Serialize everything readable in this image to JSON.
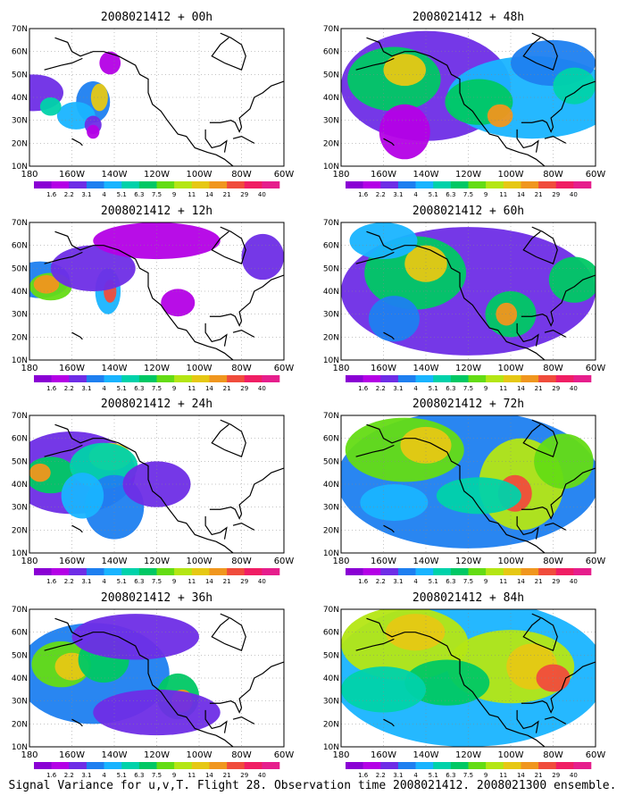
{
  "caption": "Signal Variance for u,v,T. Flight 28. Observation time 2008021412. 2008021300 ensemble.",
  "chart_data": {
    "type": "heatmap",
    "figure": "signal-variance-panels",
    "x_ticks": [
      "180",
      "160W",
      "140W",
      "120W",
      "100W",
      "80W",
      "60W"
    ],
    "y_ticks": [
      "70N",
      "60N",
      "50N",
      "40N",
      "30N",
      "20N",
      "10N"
    ],
    "xlim": [
      -180,
      -60
    ],
    "ylim": [
      10,
      70
    ],
    "grid": true,
    "colorbar": {
      "labels": [
        "1.6",
        "2.2",
        "3.1",
        "4",
        "5.1",
        "6.3",
        "7.5",
        "9",
        "11",
        "14",
        "21",
        "29",
        "40"
      ],
      "colors": [
        "#8a00d4",
        "#b400e6",
        "#6e2de6",
        "#1e7ff0",
        "#19b4ff",
        "#00d2aa",
        "#00c864",
        "#64dc14",
        "#b4e614",
        "#e6c814",
        "#f0961e",
        "#f04c3c",
        "#f01e64",
        "#e61e8c"
      ]
    },
    "panels": [
      {
        "title": "2008021412 + 00h"
      },
      {
        "title": "2008021412 + 48h"
      },
      {
        "title": "2008021412 + 12h"
      },
      {
        "title": "2008021412 + 60h"
      },
      {
        "title": "2008021412 + 24h"
      },
      {
        "title": "2008021412 + 72h"
      },
      {
        "title": "2008021412 + 36h"
      },
      {
        "title": "2008021412 + 84h"
      }
    ]
  }
}
